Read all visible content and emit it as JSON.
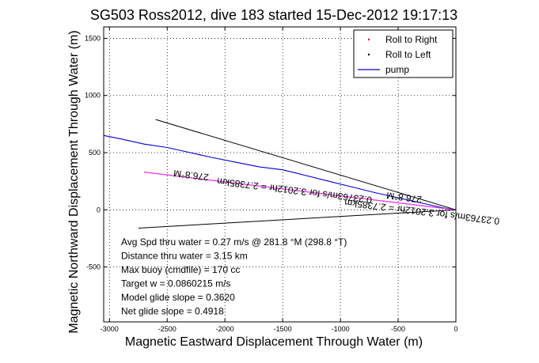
{
  "chart_data": {
    "type": "line",
    "title": "SG503 Ross2012, dive 183 started 15-Dec-2012 19:17:13",
    "xlabel": "Magnetic Eastward Displacement Through Water (m)",
    "ylabel": "Magnetic Northward Displacement Through Water (m)",
    "xlim": [
      -3050,
      0
    ],
    "ylim": [
      -980,
      1600
    ],
    "xticks": [
      -3000,
      -2500,
      -2000,
      -1500,
      -1000,
      -500,
      0
    ],
    "yticks": [
      -500,
      0,
      500,
      1000,
      1500
    ],
    "xtick_labels": [
      "-3000",
      "-2500",
      "-2000",
      "-1500",
      "-1000",
      "-500",
      "0"
    ],
    "ytick_labels": [
      "-500",
      "0",
      "500",
      "1000",
      "1500"
    ],
    "grid": true,
    "legend_placement": "top-right",
    "legend": [
      {
        "label": "Roll to Right",
        "color": "#ff0000",
        "marker": "dot"
      },
      {
        "label": "Roll to Left",
        "color": "#000000",
        "marker": "dot"
      },
      {
        "label": "pump",
        "color": "#0000cc",
        "marker": "line"
      }
    ],
    "series": [
      {
        "name": "pump",
        "color": "#0000cc",
        "x": [
          -3050,
          -2900,
          -2700,
          -2500,
          -2300,
          -2100,
          -1900,
          -1700,
          -1500,
          -1300,
          -1100,
          -900,
          -700,
          -500,
          -300,
          -100,
          0
        ],
        "y": [
          650,
          620,
          575,
          545,
          500,
          455,
          415,
          375,
          350,
          300,
          250,
          200,
          150,
          105,
          60,
          15,
          0
        ]
      },
      {
        "name": "Roll to Right",
        "color": "#ff33ff",
        "x": [
          -2700,
          0
        ],
        "y": [
          330,
          0
        ]
      }
    ],
    "guide_lines": [
      {
        "x": [
          -2600,
          0
        ],
        "y": [
          790,
          0
        ],
        "color": "#000000"
      },
      {
        "x": [
          -2700,
          0
        ],
        "y": [
          330,
          0
        ],
        "color": "#000000"
      },
      {
        "x": [
          -2750,
          0
        ],
        "y": [
          -160,
          0
        ],
        "color": "#000000"
      }
    ],
    "annotations": [
      {
        "text": "276.8°M",
        "x": -2290,
        "y": 330,
        "color": "#000000",
        "rotation_deg": 187
      },
      {
        "text": "0.23763m/s for 3.2012hr = 2.7385km",
        "x": -1395,
        "y": 195,
        "color": "#000000",
        "rotation_deg": 187
      },
      {
        "text": "276.8°M",
        "x": -445,
        "y": 135,
        "color": "#000000",
        "rotation_deg": 187
      },
      {
        "text": "0.23763m/s for 3.2012hr = 2.7385km",
        "x": -290,
        "y": 10,
        "color": "#000000",
        "rotation_deg": 187
      }
    ],
    "stats_text": [
      "Avg Spd thru water =  0.27 m/s @ 281.8   °M (298.8 °T)",
      "Distance thru water =  3.15 km",
      "Max buoy (cmdfile) = 170 cc",
      "Target w = 0.0860215 m/s",
      "Model glide slope = 0.3620",
      "Net glide slope = 0.4918"
    ]
  }
}
